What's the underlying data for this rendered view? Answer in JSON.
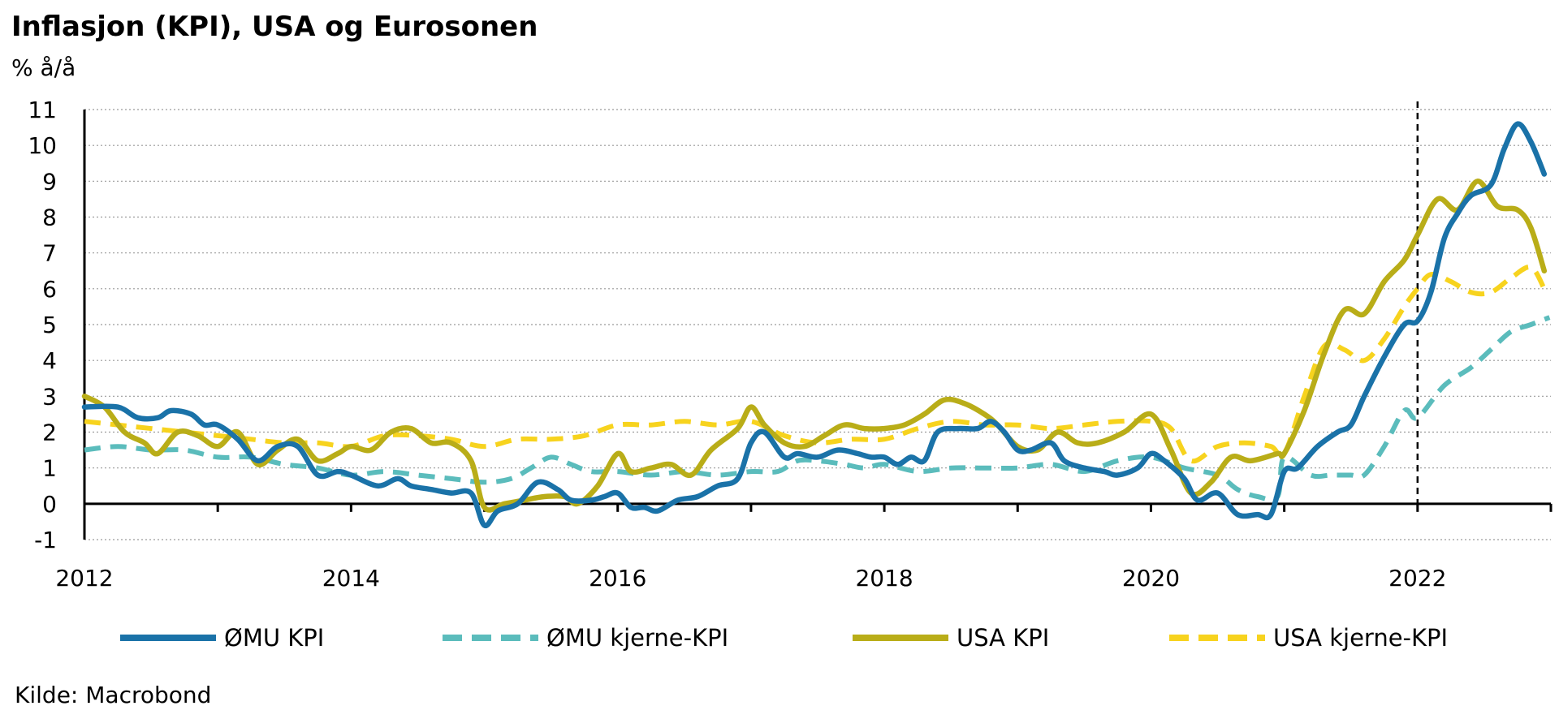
{
  "chart_data": {
    "type": "line",
    "title": "Inflasjon (KPI), USA og Eurosonen",
    "unit": "% å/å",
    "source": "Kilde: Macrobond",
    "xlim": [
      2012,
      2023
    ],
    "ylim": [
      -1,
      11
    ],
    "x_ticks": [
      2012,
      2014,
      2016,
      2018,
      2020,
      2022
    ],
    "y_ticks": [
      -1,
      0,
      1,
      2,
      3,
      4,
      5,
      6,
      7,
      8,
      9,
      10,
      11
    ],
    "grid": "horizontal dotted",
    "vline_x": 2022,
    "legend_position": "bottom",
    "series": [
      {
        "name": "ØMU KPI",
        "color": "#1a72a8",
        "style": "solid",
        "points": [
          [
            2012.0,
            2.7
          ],
          [
            2012.25,
            2.7
          ],
          [
            2012.4,
            2.4
          ],
          [
            2012.55,
            2.4
          ],
          [
            2012.65,
            2.6
          ],
          [
            2012.8,
            2.5
          ],
          [
            2012.9,
            2.2
          ],
          [
            2013.0,
            2.2
          ],
          [
            2013.15,
            1.8
          ],
          [
            2013.3,
            1.2
          ],
          [
            2013.45,
            1.6
          ],
          [
            2013.6,
            1.6
          ],
          [
            2013.75,
            0.8
          ],
          [
            2013.9,
            0.9
          ],
          [
            2014.0,
            0.8
          ],
          [
            2014.2,
            0.5
          ],
          [
            2014.35,
            0.7
          ],
          [
            2014.45,
            0.5
          ],
          [
            2014.6,
            0.4
          ],
          [
            2014.75,
            0.3
          ],
          [
            2014.9,
            0.3
          ],
          [
            2015.0,
            -0.6
          ],
          [
            2015.1,
            -0.2
          ],
          [
            2015.25,
            0.0
          ],
          [
            2015.4,
            0.6
          ],
          [
            2015.55,
            0.4
          ],
          [
            2015.65,
            0.1
          ],
          [
            2015.8,
            0.1
          ],
          [
            2015.9,
            0.2
          ],
          [
            2016.0,
            0.3
          ],
          [
            2016.1,
            -0.1
          ],
          [
            2016.2,
            -0.1
          ],
          [
            2016.3,
            -0.2
          ],
          [
            2016.45,
            0.1
          ],
          [
            2016.6,
            0.2
          ],
          [
            2016.75,
            0.5
          ],
          [
            2016.9,
            0.7
          ],
          [
            2017.0,
            1.7
          ],
          [
            2017.1,
            2.0
          ],
          [
            2017.25,
            1.3
          ],
          [
            2017.35,
            1.4
          ],
          [
            2017.5,
            1.3
          ],
          [
            2017.65,
            1.5
          ],
          [
            2017.8,
            1.4
          ],
          [
            2017.9,
            1.3
          ],
          [
            2018.0,
            1.3
          ],
          [
            2018.1,
            1.1
          ],
          [
            2018.2,
            1.3
          ],
          [
            2018.3,
            1.2
          ],
          [
            2018.4,
            2.0
          ],
          [
            2018.55,
            2.1
          ],
          [
            2018.7,
            2.1
          ],
          [
            2018.8,
            2.3
          ],
          [
            2018.9,
            2.0
          ],
          [
            2019.0,
            1.5
          ],
          [
            2019.1,
            1.5
          ],
          [
            2019.25,
            1.7
          ],
          [
            2019.35,
            1.2
          ],
          [
            2019.5,
            1.0
          ],
          [
            2019.65,
            0.9
          ],
          [
            2019.75,
            0.8
          ],
          [
            2019.9,
            1.0
          ],
          [
            2020.0,
            1.4
          ],
          [
            2020.1,
            1.2
          ],
          [
            2020.25,
            0.7
          ],
          [
            2020.35,
            0.1
          ],
          [
            2020.5,
            0.3
          ],
          [
            2020.65,
            -0.3
          ],
          [
            2020.8,
            -0.3
          ],
          [
            2020.9,
            -0.3
          ],
          [
            2021.0,
            0.9
          ],
          [
            2021.1,
            1.0
          ],
          [
            2021.25,
            1.6
          ],
          [
            2021.4,
            2.0
          ],
          [
            2021.5,
            2.2
          ],
          [
            2021.6,
            3.0
          ],
          [
            2021.75,
            4.1
          ],
          [
            2021.9,
            5.0
          ],
          [
            2022.0,
            5.1
          ],
          [
            2022.1,
            5.9
          ],
          [
            2022.2,
            7.4
          ],
          [
            2022.3,
            8.1
          ],
          [
            2022.4,
            8.6
          ],
          [
            2022.55,
            8.9
          ],
          [
            2022.65,
            9.9
          ],
          [
            2022.75,
            10.6
          ],
          [
            2022.85,
            10.1
          ],
          [
            2022.95,
            9.2
          ]
        ]
      },
      {
        "name": "ØMU kjerne-KPI",
        "color": "#5bbcbc",
        "style": "dashed",
        "points": [
          [
            2012.0,
            1.5
          ],
          [
            2012.25,
            1.6
          ],
          [
            2012.5,
            1.5
          ],
          [
            2012.75,
            1.5
          ],
          [
            2013.0,
            1.3
          ],
          [
            2013.25,
            1.3
          ],
          [
            2013.5,
            1.1
          ],
          [
            2013.75,
            1.0
          ],
          [
            2014.0,
            0.8
          ],
          [
            2014.25,
            0.9
          ],
          [
            2014.5,
            0.8
          ],
          [
            2014.75,
            0.7
          ],
          [
            2015.0,
            0.6
          ],
          [
            2015.2,
            0.7
          ],
          [
            2015.35,
            1.0
          ],
          [
            2015.5,
            1.3
          ],
          [
            2015.65,
            1.1
          ],
          [
            2015.8,
            0.9
          ],
          [
            2016.0,
            0.9
          ],
          [
            2016.25,
            0.8
          ],
          [
            2016.5,
            0.9
          ],
          [
            2016.75,
            0.8
          ],
          [
            2017.0,
            0.9
          ],
          [
            2017.2,
            0.9
          ],
          [
            2017.35,
            1.2
          ],
          [
            2017.5,
            1.2
          ],
          [
            2017.7,
            1.1
          ],
          [
            2017.85,
            1.0
          ],
          [
            2018.0,
            1.1
          ],
          [
            2018.25,
            0.9
          ],
          [
            2018.5,
            1.0
          ],
          [
            2018.75,
            1.0
          ],
          [
            2019.0,
            1.0
          ],
          [
            2019.25,
            1.1
          ],
          [
            2019.5,
            0.9
          ],
          [
            2019.75,
            1.2
          ],
          [
            2020.0,
            1.3
          ],
          [
            2020.25,
            1.0
          ],
          [
            2020.5,
            0.8
          ],
          [
            2020.65,
            0.4
          ],
          [
            2020.8,
            0.2
          ],
          [
            2020.95,
            0.2
          ],
          [
            2021.0,
            1.3
          ],
          [
            2021.2,
            0.8
          ],
          [
            2021.35,
            0.8
          ],
          [
            2021.5,
            0.8
          ],
          [
            2021.6,
            0.8
          ],
          [
            2021.75,
            1.6
          ],
          [
            2021.9,
            2.6
          ],
          [
            2022.0,
            2.4
          ],
          [
            2022.2,
            3.3
          ],
          [
            2022.4,
            3.8
          ],
          [
            2022.55,
            4.3
          ],
          [
            2022.7,
            4.8
          ],
          [
            2022.85,
            5.0
          ],
          [
            2022.99,
            5.2
          ]
        ]
      },
      {
        "name": "USA KPI",
        "color": "#b9ad18",
        "style": "solid",
        "points": [
          [
            2012.0,
            3.0
          ],
          [
            2012.15,
            2.7
          ],
          [
            2012.3,
            2.0
          ],
          [
            2012.45,
            1.7
          ],
          [
            2012.55,
            1.4
          ],
          [
            2012.7,
            2.0
          ],
          [
            2012.85,
            1.9
          ],
          [
            2013.0,
            1.6
          ],
          [
            2013.15,
            2.0
          ],
          [
            2013.3,
            1.1
          ],
          [
            2013.45,
            1.5
          ],
          [
            2013.6,
            1.8
          ],
          [
            2013.75,
            1.2
          ],
          [
            2013.9,
            1.4
          ],
          [
            2014.0,
            1.6
          ],
          [
            2014.15,
            1.5
          ],
          [
            2014.3,
            2.0
          ],
          [
            2014.45,
            2.1
          ],
          [
            2014.6,
            1.7
          ],
          [
            2014.75,
            1.7
          ],
          [
            2014.9,
            1.2
          ],
          [
            2015.0,
            -0.1
          ],
          [
            2015.15,
            0.0
          ],
          [
            2015.3,
            0.1
          ],
          [
            2015.45,
            0.2
          ],
          [
            2015.6,
            0.2
          ],
          [
            2015.7,
            0.0
          ],
          [
            2015.85,
            0.5
          ],
          [
            2016.0,
            1.4
          ],
          [
            2016.1,
            0.9
          ],
          [
            2016.25,
            1.0
          ],
          [
            2016.4,
            1.1
          ],
          [
            2016.55,
            0.8
          ],
          [
            2016.7,
            1.5
          ],
          [
            2016.9,
            2.1
          ],
          [
            2017.0,
            2.7
          ],
          [
            2017.1,
            2.2
          ],
          [
            2017.25,
            1.7
          ],
          [
            2017.4,
            1.6
          ],
          [
            2017.55,
            1.9
          ],
          [
            2017.7,
            2.2
          ],
          [
            2017.85,
            2.1
          ],
          [
            2018.0,
            2.1
          ],
          [
            2018.15,
            2.2
          ],
          [
            2018.3,
            2.5
          ],
          [
            2018.45,
            2.9
          ],
          [
            2018.6,
            2.8
          ],
          [
            2018.75,
            2.5
          ],
          [
            2018.85,
            2.2
          ],
          [
            2019.0,
            1.6
          ],
          [
            2019.15,
            1.5
          ],
          [
            2019.3,
            2.0
          ],
          [
            2019.45,
            1.7
          ],
          [
            2019.6,
            1.7
          ],
          [
            2019.8,
            2.0
          ],
          [
            2020.0,
            2.5
          ],
          [
            2020.15,
            1.5
          ],
          [
            2020.3,
            0.3
          ],
          [
            2020.45,
            0.6
          ],
          [
            2020.6,
            1.3
          ],
          [
            2020.75,
            1.2
          ],
          [
            2020.95,
            1.4
          ],
          [
            2021.0,
            1.4
          ],
          [
            2021.15,
            2.6
          ],
          [
            2021.3,
            4.2
          ],
          [
            2021.45,
            5.4
          ],
          [
            2021.6,
            5.3
          ],
          [
            2021.75,
            6.2
          ],
          [
            2021.9,
            6.8
          ],
          [
            2022.0,
            7.5
          ],
          [
            2022.15,
            8.5
          ],
          [
            2022.3,
            8.2
          ],
          [
            2022.45,
            9.0
          ],
          [
            2022.6,
            8.3
          ],
          [
            2022.75,
            8.2
          ],
          [
            2022.85,
            7.7
          ],
          [
            2022.95,
            6.5
          ]
        ]
      },
      {
        "name": "USA kjerne-KPI",
        "color": "#f7d31e",
        "style": "dashed",
        "points": [
          [
            2012.0,
            2.3
          ],
          [
            2012.25,
            2.2
          ],
          [
            2012.5,
            2.1
          ],
          [
            2012.75,
            2.0
          ],
          [
            2013.0,
            1.9
          ],
          [
            2013.25,
            1.8
          ],
          [
            2013.5,
            1.7
          ],
          [
            2013.75,
            1.7
          ],
          [
            2014.0,
            1.6
          ],
          [
            2014.25,
            1.9
          ],
          [
            2014.5,
            1.9
          ],
          [
            2014.75,
            1.8
          ],
          [
            2015.0,
            1.6
          ],
          [
            2015.25,
            1.8
          ],
          [
            2015.5,
            1.8
          ],
          [
            2015.75,
            1.9
          ],
          [
            2016.0,
            2.2
          ],
          [
            2016.25,
            2.2
          ],
          [
            2016.5,
            2.3
          ],
          [
            2016.75,
            2.2
          ],
          [
            2017.0,
            2.3
          ],
          [
            2017.25,
            1.9
          ],
          [
            2017.5,
            1.7
          ],
          [
            2017.75,
            1.8
          ],
          [
            2018.0,
            1.8
          ],
          [
            2018.25,
            2.1
          ],
          [
            2018.5,
            2.3
          ],
          [
            2018.75,
            2.2
          ],
          [
            2019.0,
            2.2
          ],
          [
            2019.25,
            2.1
          ],
          [
            2019.5,
            2.2
          ],
          [
            2019.75,
            2.3
          ],
          [
            2020.0,
            2.3
          ],
          [
            2020.15,
            2.1
          ],
          [
            2020.3,
            1.2
          ],
          [
            2020.5,
            1.6
          ],
          [
            2020.7,
            1.7
          ],
          [
            2020.9,
            1.6
          ],
          [
            2021.0,
            1.4
          ],
          [
            2021.15,
            3.0
          ],
          [
            2021.3,
            4.4
          ],
          [
            2021.45,
            4.3
          ],
          [
            2021.6,
            4.0
          ],
          [
            2021.75,
            4.6
          ],
          [
            2021.9,
            5.5
          ],
          [
            2022.0,
            6.0
          ],
          [
            2022.1,
            6.4
          ],
          [
            2022.25,
            6.2
          ],
          [
            2022.4,
            5.9
          ],
          [
            2022.55,
            5.9
          ],
          [
            2022.7,
            6.3
          ],
          [
            2022.85,
            6.6
          ],
          [
            2022.95,
            6.0
          ]
        ]
      }
    ]
  }
}
